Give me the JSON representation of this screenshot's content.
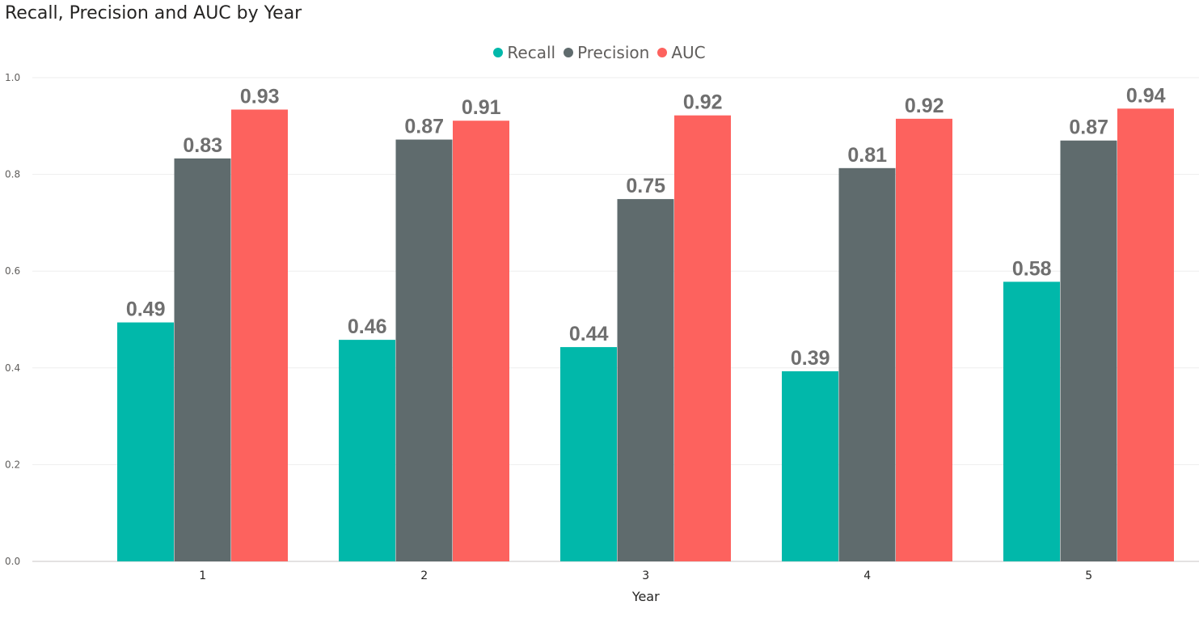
{
  "chart_data": {
    "type": "bar",
    "title": "Recall, Precision and AUC by Year",
    "xlabel": "Year",
    "ylabel": "",
    "ylim": [
      0,
      1.0
    ],
    "yticks": [
      "0.0",
      "0.2",
      "0.4",
      "0.6",
      "0.8",
      "1.0"
    ],
    "categories": [
      "1",
      "2",
      "3",
      "4",
      "5"
    ],
    "grid": true,
    "legend_position": "top-center",
    "series": [
      {
        "name": "Recall",
        "color": "#01B8AA",
        "values": [
          0.494,
          0.458,
          0.443,
          0.393,
          0.578
        ],
        "labels": [
          "0.49",
          "0.46",
          "0.44",
          "0.39",
          "0.58"
        ]
      },
      {
        "name": "Precision",
        "color": "#5F6B6D",
        "values": [
          0.833,
          0.872,
          0.749,
          0.813,
          0.87
        ],
        "labels": [
          "0.83",
          "0.87",
          "0.75",
          "0.81",
          "0.87"
        ]
      },
      {
        "name": "AUC",
        "color": "#FD625E",
        "values": [
          0.934,
          0.911,
          0.922,
          0.915,
          0.936
        ],
        "labels": [
          "0.93",
          "0.91",
          "0.92",
          "0.92",
          "0.94"
        ]
      }
    ]
  }
}
